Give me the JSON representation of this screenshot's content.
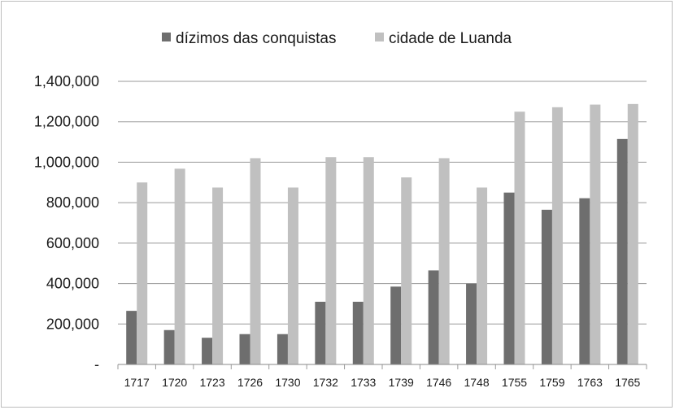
{
  "chart_data": {
    "type": "bar",
    "title": "",
    "xlabel": "",
    "ylabel": "",
    "categories": [
      "1717",
      "1720",
      "1723",
      "1726",
      "1730",
      "1732",
      "1733",
      "1739",
      "1746",
      "1748",
      "1755",
      "1759",
      "1763",
      "1765"
    ],
    "series": [
      {
        "name": "dízimos das conquistas",
        "color": "#6e6e6e",
        "values": [
          265000,
          170000,
          132000,
          150000,
          150000,
          310000,
          310000,
          385000,
          465000,
          400000,
          850000,
          765000,
          822000,
          1115000
        ]
      },
      {
        "name": "cidade de Luanda",
        "color": "#c0c0c0",
        "values": [
          900000,
          968000,
          875000,
          1020000,
          875000,
          1025000,
          1025000,
          925000,
          1020000,
          875000,
          1250000,
          1272000,
          1285000,
          1288000
        ]
      }
    ],
    "ylim": [
      0,
      1400000
    ],
    "yticks": [
      "-",
      "200,000",
      "400,000",
      "600,000",
      "800,000",
      "1,000,000",
      "1,200,000",
      "1,400,000"
    ],
    "grid": true,
    "legend": "top-center"
  }
}
